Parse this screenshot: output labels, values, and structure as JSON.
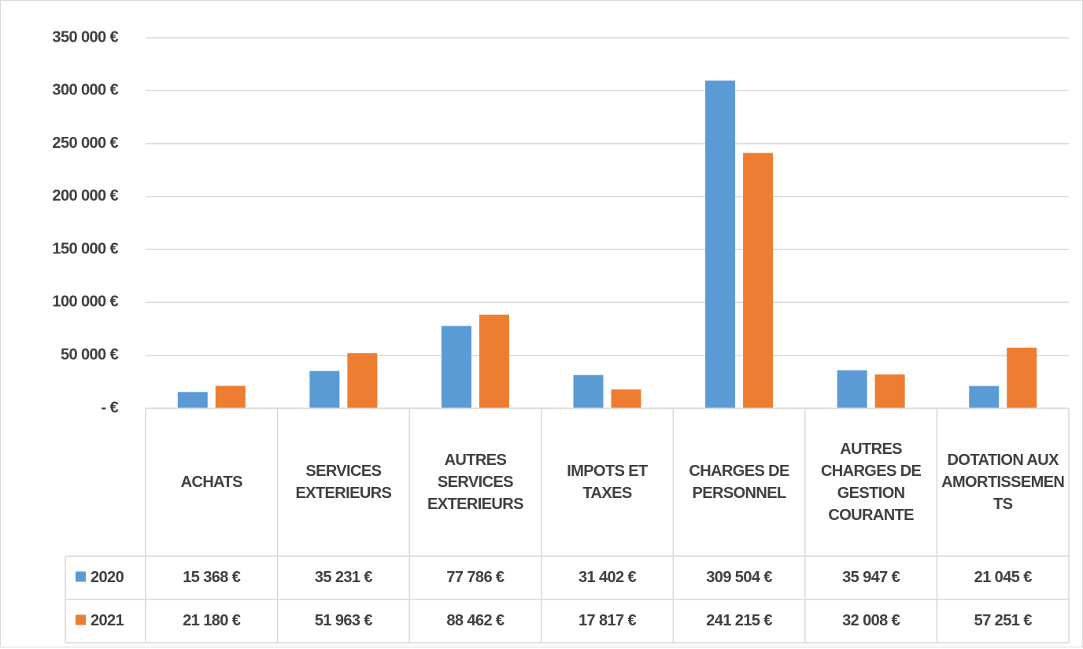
{
  "chart_data": {
    "type": "bar",
    "categories": [
      "ACHATS",
      "SERVICES EXTERIEURS",
      "AUTRES SERVICES EXTERIEURS",
      "IMPOTS ET TAXES",
      "CHARGES DE PERSONNEL",
      "AUTRES CHARGES DE GESTION COURANTE",
      "DOTATION AUX AMORTISSEMENTS"
    ],
    "series": [
      {
        "name": "2020",
        "color": "#5b9bd5",
        "values": [
          15368,
          35231,
          77786,
          31402,
          309504,
          35947,
          21045
        ],
        "value_labels": [
          "15 368 €",
          "35 231 €",
          "77 786 €",
          "31 402 €",
          "309 504 €",
          "35 947 €",
          "21 045 €"
        ]
      },
      {
        "name": "2021",
        "color": "#ed7d31",
        "values": [
          21180,
          51963,
          88462,
          17817,
          241215,
          32008,
          57251
        ],
        "value_labels": [
          "21 180 €",
          "51 963 €",
          "88 462 €",
          "17 817 €",
          "241 215 €",
          "32 008 €",
          "57 251 €"
        ]
      }
    ],
    "ylim": [
      0,
      350000
    ],
    "yticks": [
      {
        "value": 0,
        "label": "-   €"
      },
      {
        "value": 50000,
        "label": "50 000 €"
      },
      {
        "value": 100000,
        "label": "100 000 €"
      },
      {
        "value": 150000,
        "label": "150 000 €"
      },
      {
        "value": 200000,
        "label": "200 000 €"
      },
      {
        "value": 250000,
        "label": "250 000 €"
      },
      {
        "value": 300000,
        "label": "300 000 €"
      },
      {
        "value": 350000,
        "label": "350 000 €"
      }
    ],
    "grid": true,
    "data_table": true
  }
}
